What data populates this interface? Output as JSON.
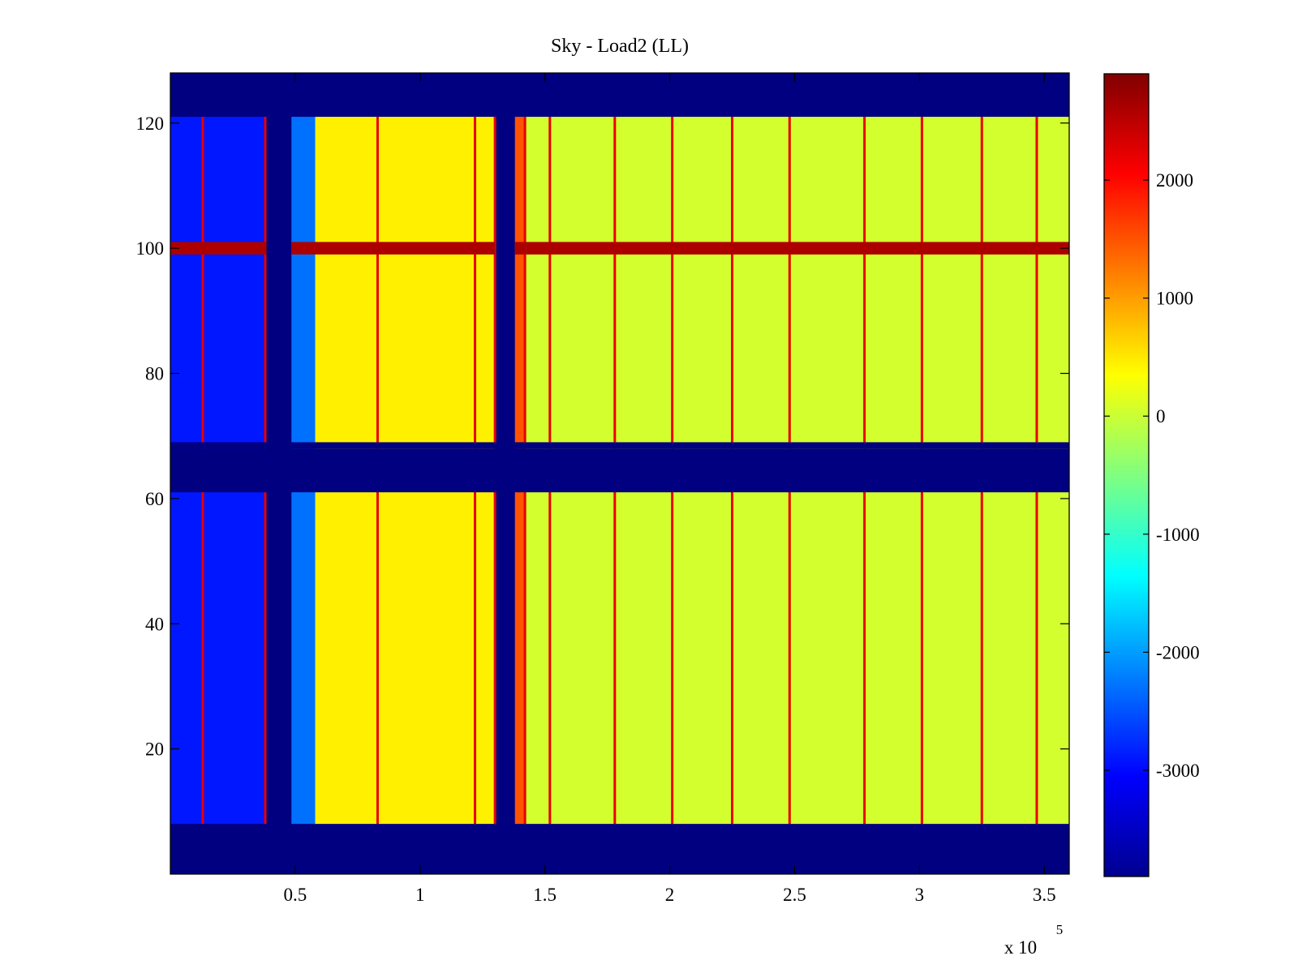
{
  "chart_data": {
    "type": "heatmap",
    "title": "Sky - Load2 (LL)",
    "xlabel": "",
    "ylabel": "",
    "x_multiplier_label": "x 10",
    "x_multiplier_exponent": "5",
    "xlim": [
      0,
      360000
    ],
    "ylim": [
      0,
      128
    ],
    "x_ticks": [
      {
        "value": 50000,
        "label": "0.5"
      },
      {
        "value": 100000,
        "label": "1"
      },
      {
        "value": 150000,
        "label": "1.5"
      },
      {
        "value": 200000,
        "label": "2"
      },
      {
        "value": 250000,
        "label": "2.5"
      },
      {
        "value": 300000,
        "label": "3"
      },
      {
        "value": 350000,
        "label": "3.5"
      }
    ],
    "y_ticks": [
      {
        "value": 20,
        "label": "20"
      },
      {
        "value": 40,
        "label": "40"
      },
      {
        "value": 60,
        "label": "60"
      },
      {
        "value": 80,
        "label": "80"
      },
      {
        "value": 100,
        "label": "100"
      },
      {
        "value": 120,
        "label": "120"
      }
    ],
    "colorbar": {
      "colormap": "jet",
      "clim": [
        -3900,
        2900
      ],
      "ticks": [
        {
          "value": 2000,
          "label": "2000"
        },
        {
          "value": 1000,
          "label": "1000"
        },
        {
          "value": 0,
          "label": "0"
        },
        {
          "value": -1000,
          "label": "-1000"
        },
        {
          "value": -2000,
          "label": "-2000"
        },
        {
          "value": -3000,
          "label": "-3000"
        }
      ]
    },
    "grid": false,
    "channel_bands": [
      [
        8,
        68
      ],
      [
        69,
        121
      ]
    ],
    "masked_rows": [
      [
        0,
        8
      ],
      [
        61,
        68
      ],
      [
        121,
        128
      ]
    ],
    "time_segments": [
      {
        "x0": 0,
        "x1": 38500,
        "value": -2900
      },
      {
        "x0": 38500,
        "x1": 48500,
        "value": -3900
      },
      {
        "x0": 48500,
        "x1": 58000,
        "value": -2300
      },
      {
        "x0": 58000,
        "x1": 130000,
        "value": 450
      },
      {
        "x0": 130000,
        "x1": 138000,
        "value": -3900
      },
      {
        "x0": 138000,
        "x1": 142500,
        "value": 1500
      },
      {
        "x0": 142500,
        "x1": 360000,
        "value": 50
      }
    ],
    "spikes_x": [
      13000,
      38000,
      83000,
      122000,
      130000,
      142000,
      152000,
      178000,
      201000,
      225000,
      248000,
      278000,
      301000,
      325000,
      347000
    ],
    "hot_row": {
      "y": 100,
      "value": 2600
    }
  }
}
